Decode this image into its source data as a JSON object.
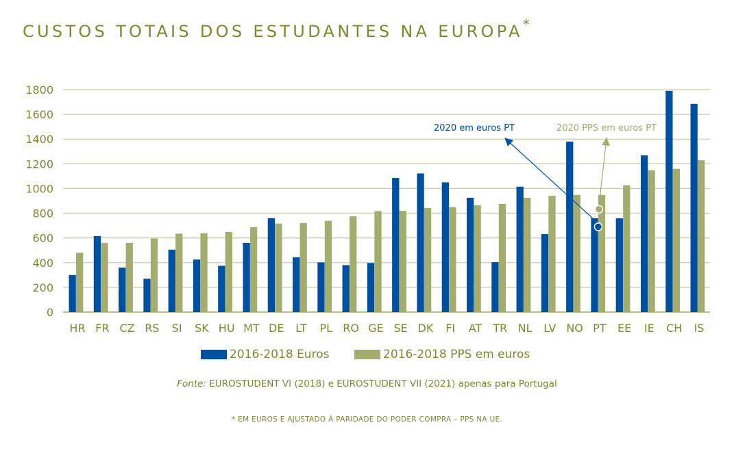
{
  "chart_data": {
    "type": "bar",
    "title": "CUSTOS TOTAIS DOS ESTUDANTES NA EUROPA",
    "title_marker": "*",
    "xlabel": "",
    "ylabel": "",
    "ylim": [
      0,
      1800
    ],
    "yticks": [
      0,
      200,
      400,
      600,
      800,
      1000,
      1200,
      1400,
      1600,
      1800
    ],
    "grid": true,
    "legend_position": "bottom",
    "categories": [
      "HR",
      "FR",
      "CZ",
      "RS",
      "SI",
      "SK",
      "HU",
      "MT",
      "DE",
      "LT",
      "PL",
      "RO",
      "GE",
      "SE",
      "DK",
      "FI",
      "AT",
      "TR",
      "NL",
      "LV",
      "NO",
      "PT",
      "EE",
      "IE",
      "CH",
      "IS"
    ],
    "series": [
      {
        "name": "2016-2018 Euros",
        "color": "#0050a0",
        "values": [
          300,
          615,
          360,
          270,
          505,
          425,
          375,
          560,
          760,
          443,
          402,
          380,
          397,
          1085,
          1122,
          1050,
          925,
          404,
          1015,
          631,
          1380,
          759,
          759,
          1268,
          1790,
          1685
        ]
      },
      {
        "name": "2016-2018 PPS em euros",
        "color": "#a4ac6f",
        "values": [
          480,
          560,
          560,
          595,
          635,
          637,
          648,
          687,
          716,
          721,
          738,
          775,
          818,
          820,
          843,
          849,
          864,
          875,
          925,
          941,
          948,
          948,
          1026,
          1148,
          1159,
          1229
        ]
      }
    ],
    "annotations": [
      {
        "text": "2020 em euros PT",
        "category": "PT",
        "value": 690,
        "color": "#0050a0"
      },
      {
        "text": "2020 PPS em euros PT",
        "category": "PT",
        "value": 832,
        "color": "#a4ac6f"
      }
    ]
  },
  "source": {
    "label": "Fonte:",
    "text": " EUROSTUDENT VI (2018) e EUROSTUDENT VII (2021) apenas para Portugal"
  },
  "note": "* EM EUROS E AJUSTADO À PARIDADE DO PODER COMPRA – PPS NA UE.",
  "colors": {
    "text": "#7b8a2f",
    "grid": "#c9cfa6",
    "axis": "#8a9a3e"
  }
}
